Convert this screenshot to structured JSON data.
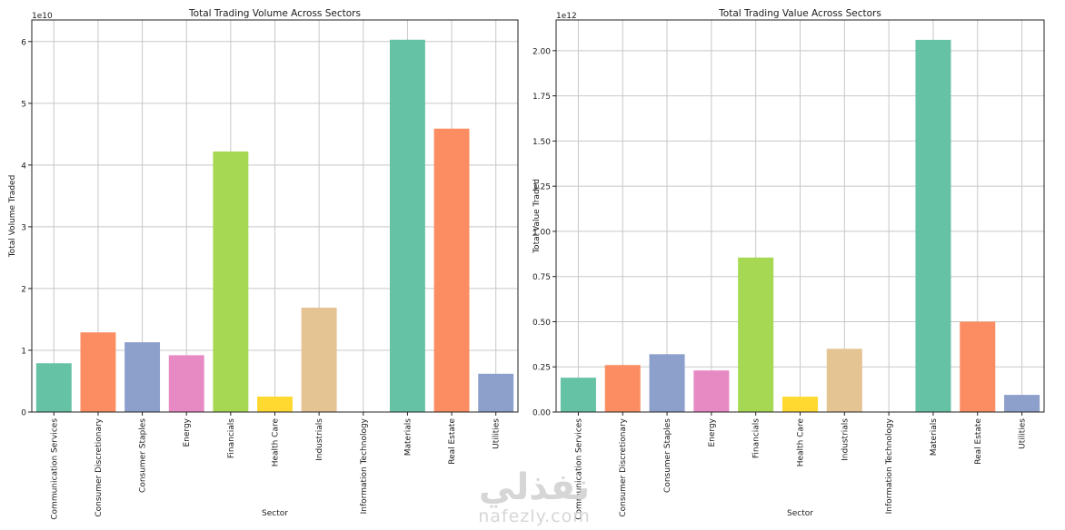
{
  "chart_data": [
    {
      "type": "bar",
      "title": "Total Trading Volume Across Sectors",
      "xlabel": "Sector",
      "ylabel": "Total Volume Traded",
      "offset_label": "1e10",
      "ylim": [
        0,
        6.35
      ],
      "yticks": [
        0,
        1,
        2,
        3,
        4,
        5,
        6
      ],
      "ytick_labels": [
        "0",
        "1",
        "2",
        "3",
        "4",
        "5",
        "6"
      ],
      "grid": true,
      "categories": [
        "Communication Services",
        "Consumer Discretionary",
        "Consumer Staples",
        "Energy",
        "Financials",
        "Health Care",
        "Industrials",
        "Information Technology",
        "Materials",
        "Real Estate",
        "Utilities"
      ],
      "values": [
        0.79,
        1.29,
        1.13,
        0.92,
        4.22,
        0.25,
        1.69,
        0.0,
        6.03,
        4.59,
        0.62
      ]
    },
    {
      "type": "bar",
      "title": "Total Trading Value Across Sectors",
      "xlabel": "Sector",
      "ylabel": "Total Value Traded",
      "offset_label": "1e12",
      "ylim": [
        0,
        2.17
      ],
      "yticks": [
        0,
        0.25,
        0.5,
        0.75,
        1.0,
        1.25,
        1.5,
        1.75,
        2.0
      ],
      "ytick_labels": [
        "0.00",
        "0.25",
        "0.50",
        "0.75",
        "1.00",
        "1.25",
        "1.50",
        "1.75",
        "2.00"
      ],
      "grid": true,
      "categories": [
        "Communication Services",
        "Consumer Discretionary",
        "Consumer Staples",
        "Energy",
        "Financials",
        "Health Care",
        "Industrials",
        "Information Technology",
        "Materials",
        "Real Estate",
        "Utilities"
      ],
      "values": [
        0.19,
        0.26,
        0.32,
        0.23,
        0.855,
        0.085,
        0.35,
        0.0,
        2.06,
        0.5,
        0.095
      ]
    }
  ],
  "colors": [
    "#66c2a5",
    "#fc8d62",
    "#8da0cb",
    "#e78ac3",
    "#a6d854",
    "#ffd92f",
    "#e5c494",
    "#b3b3b3",
    "#66c2a5",
    "#fc8d62",
    "#8da0cb"
  ],
  "watermark": {
    "arabic": "نفذلي",
    "latin": "nafezly.com"
  }
}
